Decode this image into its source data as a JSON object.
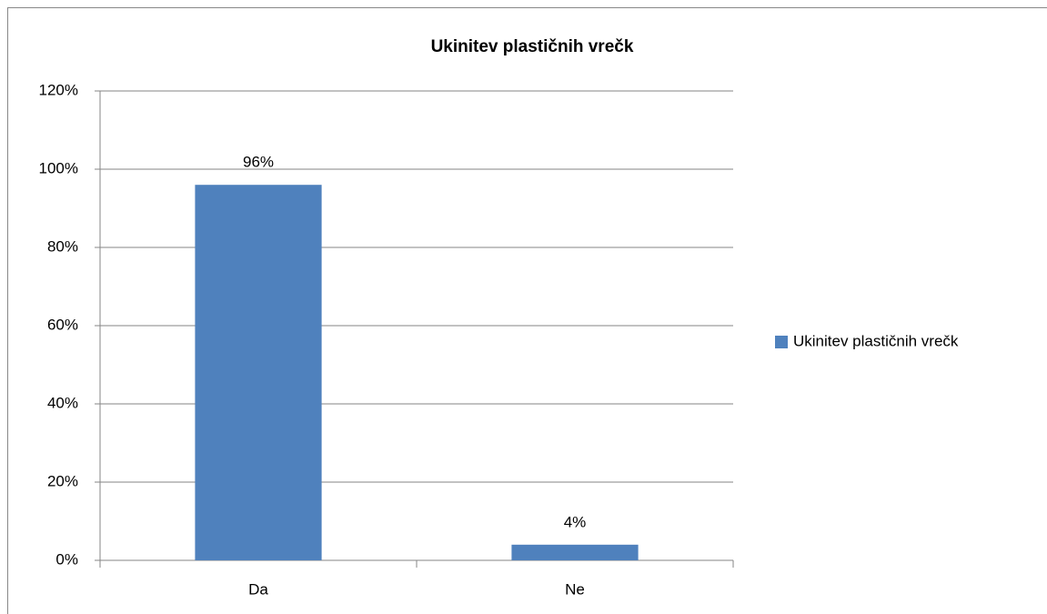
{
  "chart_data": {
    "type": "bar",
    "title": "Ukinitev plastičnih vrečk",
    "categories": [
      "Da",
      "Ne"
    ],
    "series": [
      {
        "name": "Ukinitev plastičnih vrečk",
        "color": "#4f81bd",
        "values": [
          96,
          4
        ],
        "value_labels": [
          "96%",
          "4%"
        ]
      }
    ],
    "ylim": [
      0,
      120
    ],
    "yticks": [
      {
        "value": 0,
        "label": "0%"
      },
      {
        "value": 20,
        "label": "20%"
      },
      {
        "value": 40,
        "label": "40%"
      },
      {
        "value": 60,
        "label": "60%"
      },
      {
        "value": 80,
        "label": "80%"
      },
      {
        "value": 100,
        "label": "100%"
      },
      {
        "value": 120,
        "label": "120%"
      }
    ],
    "grid": true,
    "legend": "right"
  }
}
